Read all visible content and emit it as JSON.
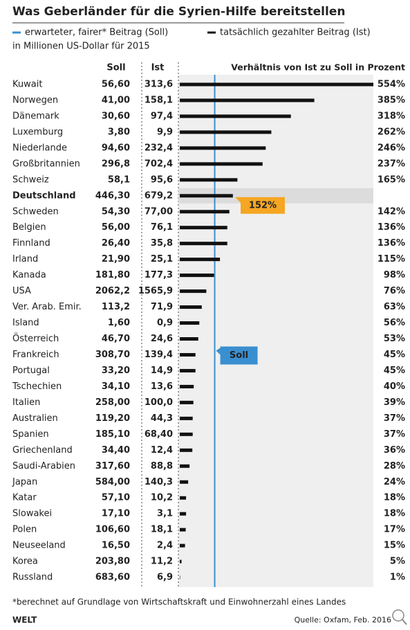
{
  "header": {
    "title": "Was Geberländer für die Syrien-Hilfe bereitstellen",
    "legend": [
      {
        "name": "erwarteter, fairer* Beitrag (Soll)",
        "color": "#3a8fd0"
      },
      {
        "name": "tatsächlich gezahlter Beitrag (Ist)",
        "color": "#111111"
      }
    ],
    "subtitle": "in Millionen US-Dollar für 2015"
  },
  "chart_data": {
    "type": "bar",
    "orientation": "horizontal",
    "soll_header": "Soll",
    "ist_header": "Ist",
    "ratio_header": "Verhältnis von Ist zu Soll in Prozent",
    "categories": [
      "Kuwait",
      "Norwegen",
      "Dänemark",
      "Luxemburg",
      "Niederlande",
      "Großbritannien",
      "Schweiz",
      "Deutschland",
      "Schweden",
      "Belgien",
      "Finnland",
      "Irland",
      "Kanada",
      "USA",
      "Ver. Arab. Emir.",
      "Island",
      "Österreich",
      "Frankreich",
      "Portugal",
      "Tschechien",
      "Italien",
      "Australien",
      "Spanien",
      "Griechenland",
      "Saudi-Arabien",
      "Japan",
      "Katar",
      "Slowakei",
      "Polen",
      "Neuseeland",
      "Korea",
      "Russland"
    ],
    "soll": [
      "56,60",
      "41,00",
      "30,60",
      "3,80",
      "94,60",
      "296,8",
      "58,1",
      "446,30",
      "54,30",
      "56,00",
      "26,40",
      "21,90",
      "181,80",
      "2062,2",
      "113,2",
      "1,60",
      "46,70",
      "308,70",
      "33,20",
      "34,10",
      "258,00",
      "119,20",
      "185,10",
      "34,40",
      "317,60",
      "584,00",
      "57,10",
      "17,10",
      "106,60",
      "16,50",
      "203,80",
      "683,60"
    ],
    "ist": [
      "313,6",
      "158,1",
      "97,4",
      "9,9",
      "232,4",
      "702,4",
      "95,6",
      "679,2",
      "77,00",
      "76,1",
      "35,8",
      "25,1",
      "177,3",
      "1565,9",
      "71,9",
      "0,9",
      "24,6",
      "139,4",
      "14,9",
      "13,6",
      "100,0",
      "44,3",
      "68,40",
      "12,4",
      "88,8",
      "140,3",
      "10,2",
      "3,1",
      "18,1",
      "2,4",
      "11,2",
      "6,9"
    ],
    "values": [
      554,
      385,
      318,
      262,
      246,
      237,
      165,
      152,
      142,
      136,
      136,
      115,
      98,
      76,
      63,
      56,
      53,
      45,
      45,
      40,
      39,
      37,
      37,
      36,
      28,
      24,
      18,
      18,
      17,
      15,
      5,
      1
    ],
    "value_labels": [
      "554%",
      "385%",
      "318%",
      "262%",
      "246%",
      "237%",
      "165%",
      "152%",
      "142%",
      "136%",
      "136%",
      "115%",
      "98%",
      "76%",
      "63%",
      "56%",
      "53%",
      "45%",
      "45%",
      "40%",
      "39%",
      "37%",
      "37%",
      "36%",
      "28%",
      "24%",
      "18%",
      "18%",
      "17%",
      "15%",
      "5%",
      "1%"
    ],
    "highlight_category": "Deutschland",
    "reference": {
      "value": 100,
      "label": "Soll"
    },
    "bar_color": "#111111",
    "soll_color": "#3a8fd0",
    "highlight_color": "#f5a623"
  },
  "footer": {
    "footnote": "*berechnet auf Grundlage von Wirtschaftskraft und Einwohnerzahl eines Landes",
    "brand": "WELT",
    "source": "Quelle: Oxfam, Feb. 2016"
  }
}
